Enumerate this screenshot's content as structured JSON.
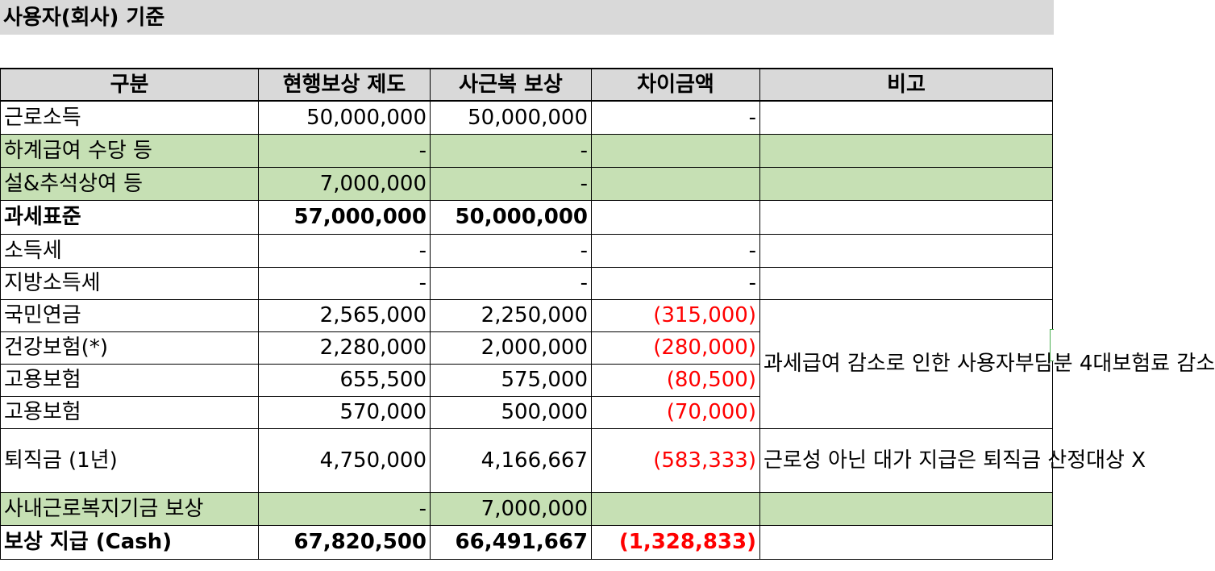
{
  "title": "사용자(회사) 기준",
  "headers": [
    "구분",
    "현행보상 제도",
    "사근복 보상",
    "차이금액",
    "비고"
  ],
  "rows": [
    {
      "label": "근로소득",
      "current": "50,000,000",
      "new": "50,000,000",
      "diff": "-"
    },
    {
      "label": "하계급여 수당 등",
      "current": "-",
      "new": "-",
      "diff": ""
    },
    {
      "label": "설&추석상여 등",
      "current": "7,000,000",
      "new": "-",
      "diff": ""
    },
    {
      "label": "과세표준",
      "current": "57,000,000",
      "new": "50,000,000",
      "diff": ""
    },
    {
      "label": "소득세",
      "current": "-",
      "new": "-",
      "diff": "-"
    },
    {
      "label": "지방소득세",
      "current": "-",
      "new": "-",
      "diff": "-"
    },
    {
      "label": "국민연금",
      "current": "2,565,000",
      "new": "2,250,000",
      "diff": "(315,000)"
    },
    {
      "label": "건강보험(*)",
      "current": "2,280,000",
      "new": "2,000,000",
      "diff": "(280,000)"
    },
    {
      "label": "고용보험",
      "current": "655,500",
      "new": "575,000",
      "diff": "(80,500)"
    },
    {
      "label": "고용보험",
      "current": "570,000",
      "new": "500,000",
      "diff": "(70,000)"
    },
    {
      "label": "퇴직금 (1년)",
      "current": "4,750,000",
      "new": "4,166,667",
      "diff": "(583,333)"
    },
    {
      "label": "사내근로복지기금 보상",
      "current": "-",
      "new": "7,000,000",
      "diff": ""
    },
    {
      "label": "보상 지급 (Cash)",
      "current": "67,820,500",
      "new": "66,491,667",
      "diff": "(1,328,833)"
    }
  ],
  "notes": {
    "insurance": "과세급여 감소로 인한 사용자부담분 4대보험료 감소",
    "severance": "근로성 아닌 대가 지급은 퇴직금 산정대상 X"
  },
  "colors": {
    "header_bg": "#d9d9d9",
    "green_row": "#c6e0b4",
    "negative": "#ff0000"
  }
}
